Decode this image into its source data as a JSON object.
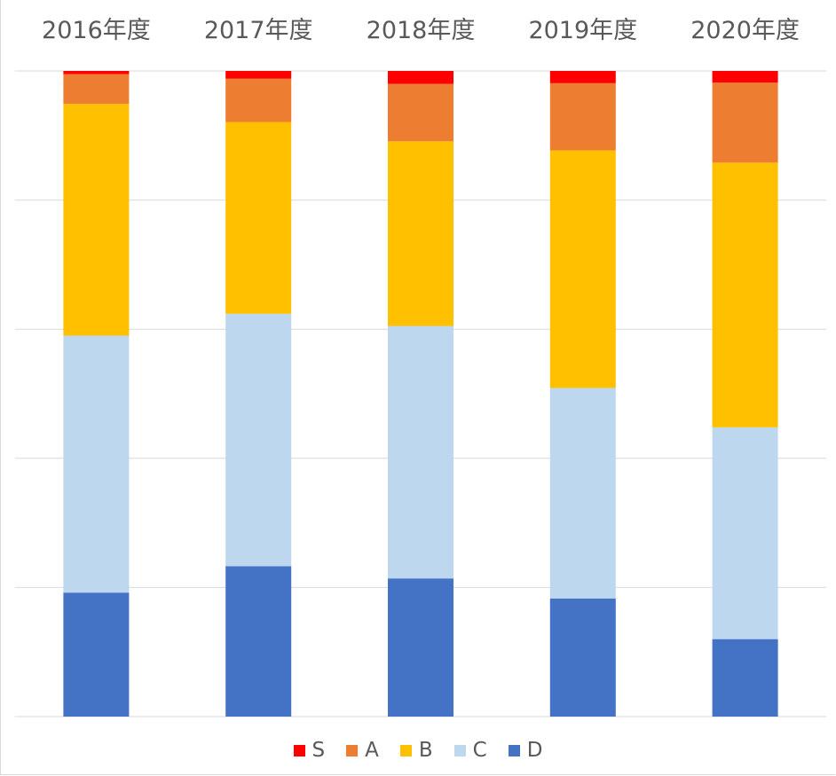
{
  "chart_data": {
    "type": "bar",
    "stacked": true,
    "normalized_to_100": true,
    "x_axis_position": "top",
    "categories": [
      "2016年度",
      "2017年度",
      "2018年度",
      "2019年度",
      "2020年度"
    ],
    "series": [
      {
        "name": "D",
        "color": "#4472C4",
        "values": [
          19.2,
          23.3,
          21.4,
          18.3,
          12.0
        ]
      },
      {
        "name": "C",
        "color": "#BDD7EE",
        "values": [
          39.8,
          39.1,
          39.1,
          32.6,
          32.8
        ]
      },
      {
        "name": "B",
        "color": "#FFC000",
        "values": [
          35.9,
          29.7,
          28.6,
          36.8,
          41.0
        ]
      },
      {
        "name": "A",
        "color": "#ED7D31",
        "values": [
          4.6,
          6.7,
          8.9,
          10.4,
          12.4
        ]
      },
      {
        "name": "S",
        "color": "#FF0000",
        "values": [
          0.5,
          1.2,
          2.0,
          1.9,
          1.8
        ]
      }
    ],
    "ylim": [
      0,
      100
    ],
    "grid": true,
    "legend": {
      "position": "bottom",
      "order": [
        "S",
        "A",
        "B",
        "C",
        "D"
      ]
    }
  }
}
